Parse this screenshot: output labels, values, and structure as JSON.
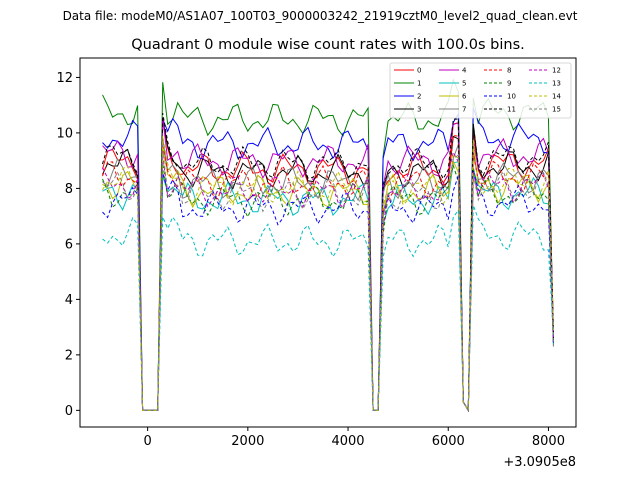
{
  "chart_data": {
    "type": "line",
    "suptitle": "Data file: modeM0/AS1A07_100T03_9000003242_21919cztM0_level2_quad_clean.evt",
    "title": "Quadrant 0 module wise count rates with 100.0s bins.",
    "xlabel": "",
    "ylabel": "",
    "x_offset_label": "+3.0905e8",
    "xlim": [
      -1350,
      8550
    ],
    "ylim": [
      -0.6,
      12.7
    ],
    "xticks": [
      0,
      2000,
      4000,
      6000,
      8000
    ],
    "xtick_labels": [
      "0",
      "2000",
      "4000",
      "6000",
      "8000"
    ],
    "yticks": [
      0,
      2,
      4,
      6,
      8,
      10,
      12
    ],
    "ytick_labels": [
      "0",
      "2",
      "4",
      "6",
      "8",
      "10",
      "12"
    ],
    "gaps": [
      [
        -100,
        200
      ],
      [
        4450,
        4650
      ],
      [
        6300,
        6400
      ]
    ],
    "legend": {
      "position": "top-right",
      "ncol": 4
    },
    "series": [
      {
        "name": "0",
        "color": "#ff0000",
        "style": "solid",
        "baseline": 8.7
      },
      {
        "name": "1",
        "color": "#008000",
        "style": "solid",
        "baseline": 10.5
      },
      {
        "name": "2",
        "color": "#0000ff",
        "style": "solid",
        "baseline": 9.6
      },
      {
        "name": "3",
        "color": "#000000",
        "style": "solid",
        "baseline": 8.6
      },
      {
        "name": "4",
        "color": "#bf00bf",
        "style": "solid",
        "baseline": 9.0
      },
      {
        "name": "5",
        "color": "#00bfbf",
        "style": "solid",
        "baseline": 7.6
      },
      {
        "name": "6",
        "color": "#bfbf00",
        "style": "solid",
        "baseline": 7.9
      },
      {
        "name": "7",
        "color": "#808080",
        "style": "solid",
        "baseline": 8.2
      },
      {
        "name": "8",
        "color": "#ff0000",
        "style": "dashed",
        "baseline": 8.2
      },
      {
        "name": "9",
        "color": "#008000",
        "style": "dashed",
        "baseline": 7.6
      },
      {
        "name": "10",
        "color": "#0000ff",
        "style": "dashed",
        "baseline": 7.3
      },
      {
        "name": "11",
        "color": "#000000",
        "style": "dashed",
        "baseline": 8.9
      },
      {
        "name": "12",
        "color": "#bf00bf",
        "style": "dashed",
        "baseline": 7.9
      },
      {
        "name": "13",
        "color": "#00bfbf",
        "style": "dashed",
        "baseline": 6.1
      },
      {
        "name": "14",
        "color": "#bfbf00",
        "style": "dashed",
        "baseline": 8.0
      },
      {
        "name": "15",
        "color": "#808080",
        "style": "dashed",
        "baseline": 7.8
      }
    ]
  }
}
